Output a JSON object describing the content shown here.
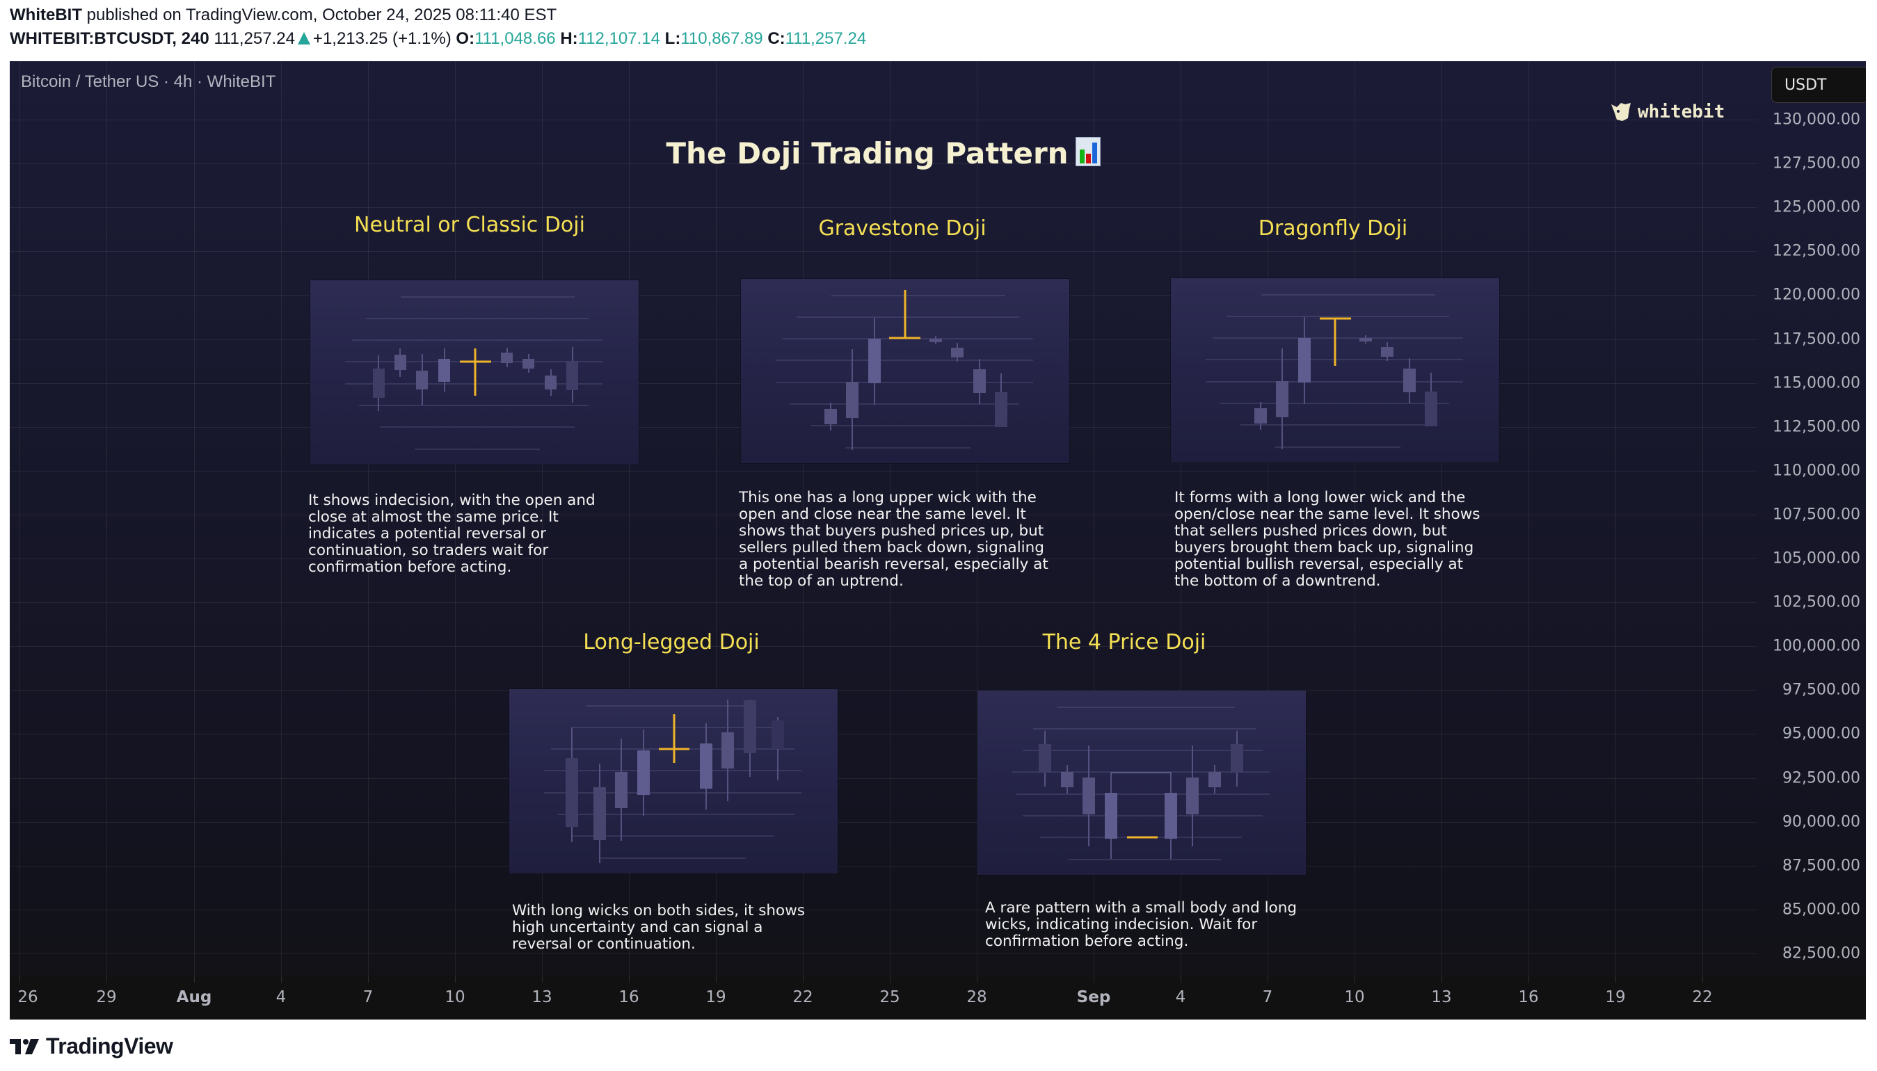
{
  "header": {
    "publisher": "WhiteBIT",
    "published_text": "published on TradingView.com, October 24, 2025 08:11:40 EST",
    "symbol": "WHITEBIT:BTCUSDT, 240",
    "last_price": "111,257.24",
    "change": "+1,213.25 (+1.1%)",
    "ohlc": [
      {
        "label": "O:",
        "value": "111,048.66"
      },
      {
        "label": "H:",
        "value": "112,107.14"
      },
      {
        "label": "L:",
        "value": "110,867.89"
      },
      {
        "label": "C:",
        "value": "111,257.24"
      }
    ],
    "up_color": "#26a69a"
  },
  "chart": {
    "legend": "Bitcoin / Tether US · 4h · WhiteBIT",
    "currency": "USDT",
    "brand_logo_text": "whitebit",
    "price_axis": [
      "130,000.00",
      "127,500.00",
      "125,000.00",
      "122,500.00",
      "120,000.00",
      "117,500.00",
      "115,000.00",
      "112,500.00",
      "110,000.00",
      "107,500.00",
      "105,000.00",
      "102,500.00",
      "100,000.00",
      "97,500.00",
      "95,000.00",
      "92,500.00",
      "90,000.00",
      "87,500.00",
      "85,000.00",
      "82,500.00"
    ],
    "time_axis": [
      {
        "label": "26",
        "bold": false
      },
      {
        "label": "29",
        "bold": false
      },
      {
        "label": "Aug",
        "bold": true
      },
      {
        "label": "4",
        "bold": false
      },
      {
        "label": "7",
        "bold": false
      },
      {
        "label": "10",
        "bold": false
      },
      {
        "label": "13",
        "bold": false
      },
      {
        "label": "16",
        "bold": false
      },
      {
        "label": "19",
        "bold": false
      },
      {
        "label": "22",
        "bold": false
      },
      {
        "label": "25",
        "bold": false
      },
      {
        "label": "28",
        "bold": false
      },
      {
        "label": "Sep",
        "bold": true
      },
      {
        "label": "4",
        "bold": false
      },
      {
        "label": "7",
        "bold": false
      },
      {
        "label": "10",
        "bold": false
      },
      {
        "label": "13",
        "bold": false
      },
      {
        "label": "16",
        "bold": false
      },
      {
        "label": "19",
        "bold": false
      },
      {
        "label": "22",
        "bold": false
      }
    ]
  },
  "infographic": {
    "title": "The Doji Trading Pattern",
    "title_emoji": "bar-chart-emoji",
    "accent_color": "#f5e053",
    "doji_color": "#f0b429",
    "cards": [
      {
        "title": "Neutral or Classic Doji",
        "description": "It shows indecision, with the open and\nclose at almost the same price. It\nindicates a potential reversal or\ncontinuation, so traders wait for\nconfirmation before acting."
      },
      {
        "title": "Gravestone Doji",
        "description": "This one has a long upper wick with the\nopen and close near the same level. It\nshows that buyers pushed prices up, but\nsellers pulled them back down, signaling\na potential bearish reversal, especially at\nthe top of an uptrend."
      },
      {
        "title": "Dragonfly Doji",
        "description": "It forms with a long lower wick and the\nopen/close near the same level. It shows\nthat sellers pushed prices down, but\nbuyers brought them back up, signaling\npotential bullish reversal, especially at\nthe bottom of a downtrend."
      },
      {
        "title": "Long-legged Doji",
        "description": "With long wicks on both sides, it shows\nhigh uncertainty and can signal a\nreversal or continuation."
      },
      {
        "title": "The 4 Price Doji",
        "description": "A rare pattern with a small body and long\nwicks, indicating indecision. Wait for\nconfirmation before acting."
      }
    ]
  },
  "footer": {
    "brand": "TradingView"
  }
}
